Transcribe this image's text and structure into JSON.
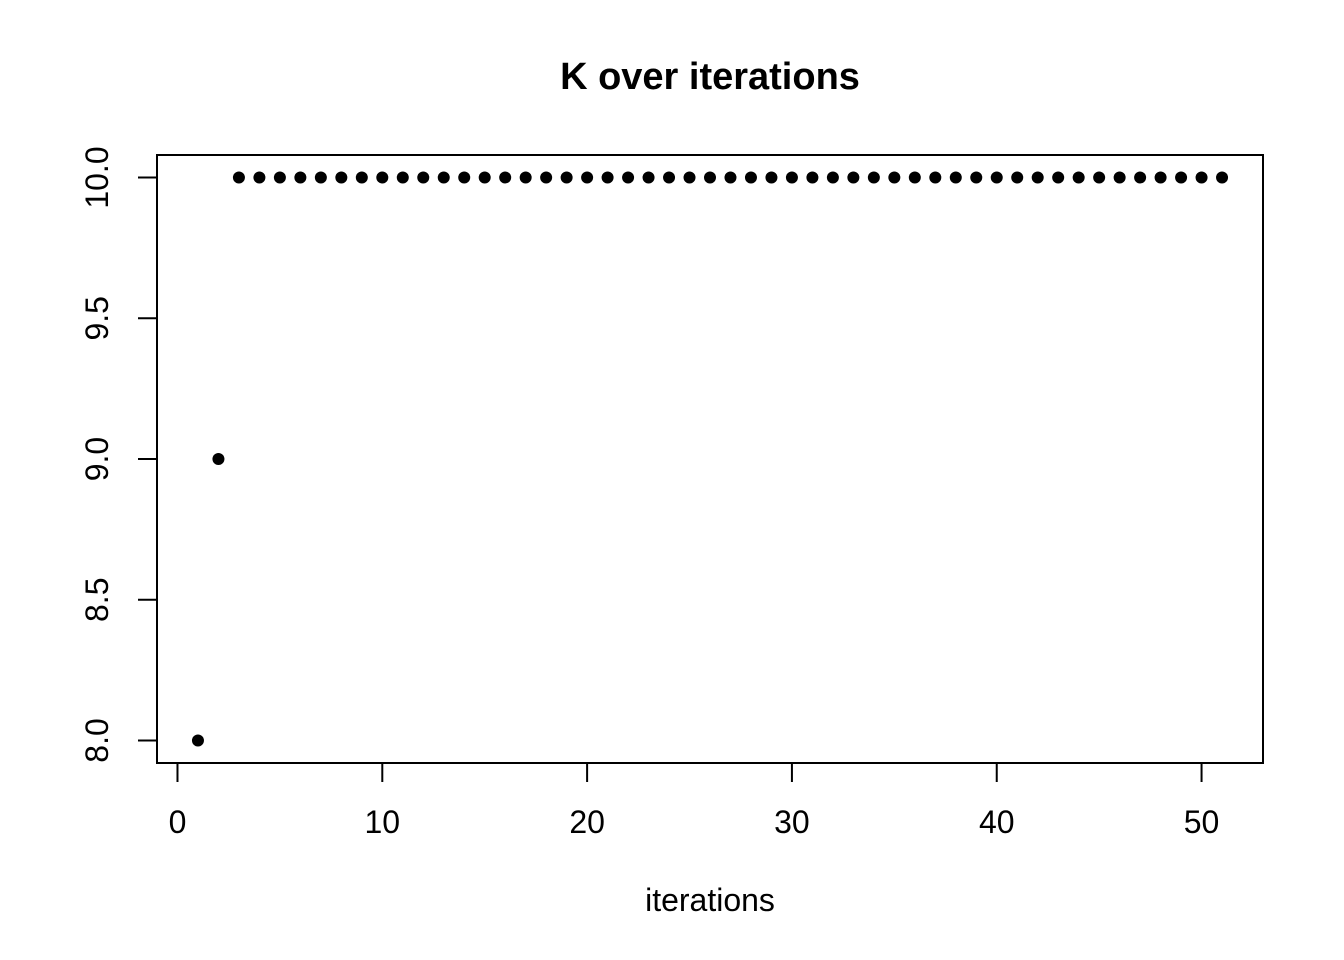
{
  "chart_data": {
    "type": "scatter",
    "title": "K over iterations",
    "xlabel": "iterations",
    "ylabel": "",
    "x": [
      1,
      2,
      3,
      4,
      5,
      6,
      7,
      8,
      9,
      10,
      11,
      12,
      13,
      14,
      15,
      16,
      17,
      18,
      19,
      20,
      21,
      22,
      23,
      24,
      25,
      26,
      27,
      28,
      29,
      30,
      31,
      32,
      33,
      34,
      35,
      36,
      37,
      38,
      39,
      40,
      41,
      42,
      43,
      44,
      45,
      46,
      47,
      48,
      49,
      50,
      51
    ],
    "y": [
      8,
      9,
      10,
      10,
      10,
      10,
      10,
      10,
      10,
      10,
      10,
      10,
      10,
      10,
      10,
      10,
      10,
      10,
      10,
      10,
      10,
      10,
      10,
      10,
      10,
      10,
      10,
      10,
      10,
      10,
      10,
      10,
      10,
      10,
      10,
      10,
      10,
      10,
      10,
      10,
      10,
      10,
      10,
      10,
      10,
      10,
      10,
      10,
      10,
      10,
      10
    ],
    "xlim": [
      -1,
      53
    ],
    "ylim": [
      7.92,
      10.08
    ],
    "xticks": [
      0,
      10,
      20,
      30,
      40,
      50
    ],
    "xtick_labels": [
      "0",
      "10",
      "20",
      "30",
      "40",
      "50"
    ],
    "yticks": [
      8.0,
      8.5,
      9.0,
      9.5,
      10.0
    ],
    "ytick_labels": [
      "8.0",
      "8.5",
      "9.0",
      "9.5",
      "10.0"
    ],
    "grid": false,
    "legend": null,
    "point_color": "#000000",
    "axis_color": "#000000",
    "text_color": "#000000",
    "background": "#ffffff"
  }
}
